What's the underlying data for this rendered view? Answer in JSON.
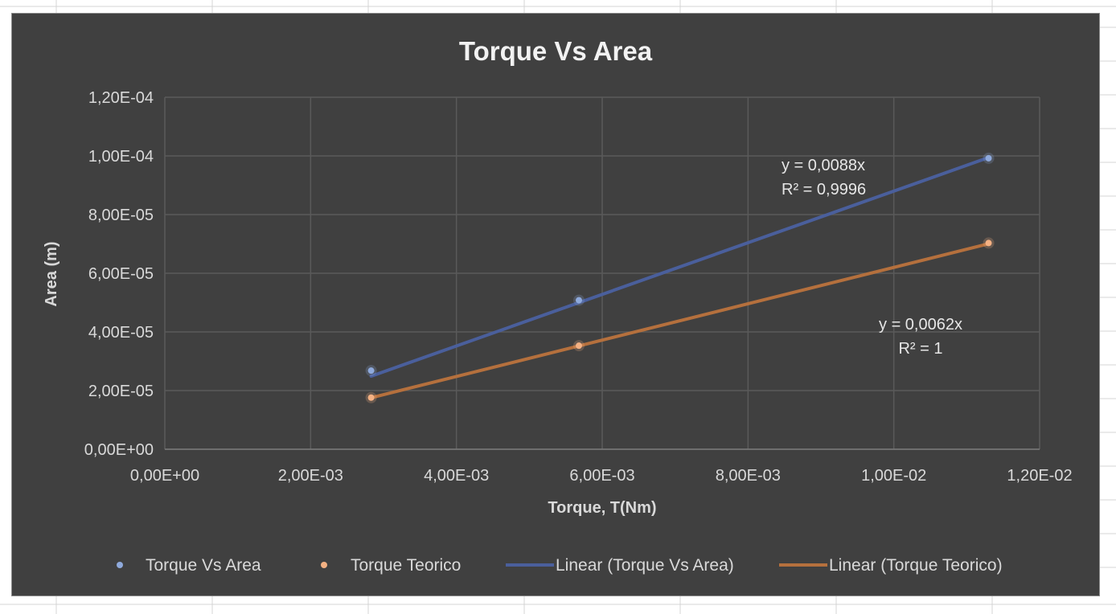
{
  "chart_data": {
    "type": "scatter",
    "title": "Torque Vs Area",
    "xlabel": "Torque, T(Nm)",
    "ylabel": "Area (m)",
    "xlim": [
      0,
      0.012
    ],
    "ylim": [
      0,
      0.00012
    ],
    "xticks": [
      0,
      0.002,
      0.004,
      0.006,
      0.008,
      0.01,
      0.012
    ],
    "yticks": [
      0,
      2e-05,
      4e-05,
      6e-05,
      8e-05,
      0.0001,
      0.00012
    ],
    "xtick_labels": [
      "0,00E+00",
      "2,00E-03",
      "4,00E-03",
      "6,00E-03",
      "8,00E-03",
      "1,00E-02",
      "1,20E-02"
    ],
    "ytick_labels": [
      "0,00E+00",
      "2,00E-05",
      "4,00E-05",
      "6,00E-05",
      "8,00E-05",
      "1,00E-04",
      "1,20E-04"
    ],
    "grid": true,
    "legend_position": "bottom",
    "series": [
      {
        "name": "Torque Vs Area",
        "color": "#8faadc",
        "x": [
          0.00283,
          0.00568,
          0.0113
        ],
        "y": [
          2.68e-05,
          5.08e-05,
          9.92e-05
        ]
      },
      {
        "name": "Torque Teorico",
        "color": "#f4b183",
        "x": [
          0.00283,
          0.00568,
          0.0113
        ],
        "y": [
          1.76e-05,
          3.53e-05,
          7.03e-05
        ]
      }
    ],
    "trendlines": [
      {
        "name": "Linear (Torque Vs Area)",
        "series": "Torque Vs Area",
        "color": "#4a5f9c",
        "slope": 0.0088,
        "x_range": [
          0.00283,
          0.0113
        ],
        "equation": "y = 0,0088x",
        "r2": "R² = 0,9996"
      },
      {
        "name": "Linear (Torque Teorico)",
        "series": "Torque Teorico",
        "color": "#b5703d",
        "slope": 0.0062,
        "x_range": [
          0.00283,
          0.0113
        ],
        "equation": "y = 0,0062x",
        "r2": "R² = 1"
      }
    ]
  }
}
